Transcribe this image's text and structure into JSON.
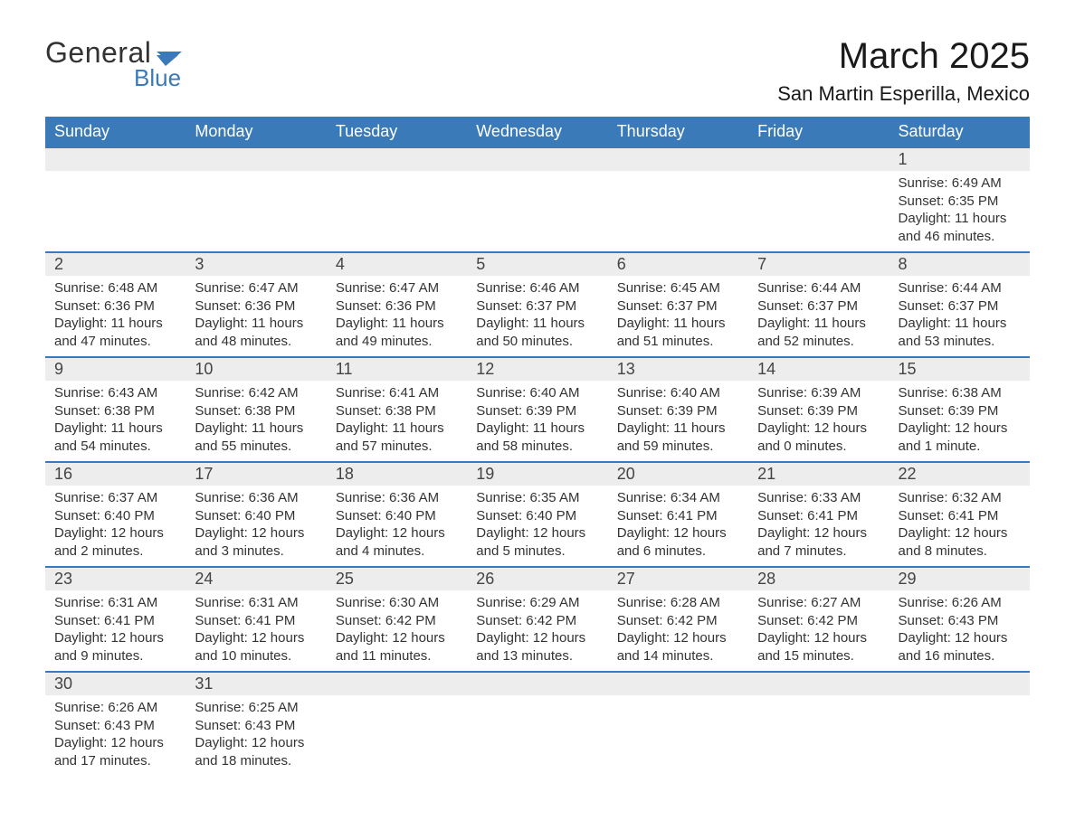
{
  "brand": {
    "general": "General",
    "blue": "Blue",
    "flag_color": "#3b7ab8"
  },
  "title": "March 2025",
  "location": "San Martin Esperilla, Mexico",
  "colors": {
    "header_bg": "#3b7ab8",
    "header_text": "#ffffff",
    "daynum_bg": "#ededed",
    "border": "#3b7ab8",
    "text": "#333333",
    "body_bg": "#ffffff"
  },
  "weekdays": [
    "Sunday",
    "Monday",
    "Tuesday",
    "Wednesday",
    "Thursday",
    "Friday",
    "Saturday"
  ],
  "weeks": [
    [
      null,
      null,
      null,
      null,
      null,
      null,
      {
        "n": "1",
        "sr": "Sunrise: 6:49 AM",
        "ss": "Sunset: 6:35 PM",
        "d1": "Daylight: 11 hours",
        "d2": "and 46 minutes."
      }
    ],
    [
      {
        "n": "2",
        "sr": "Sunrise: 6:48 AM",
        "ss": "Sunset: 6:36 PM",
        "d1": "Daylight: 11 hours",
        "d2": "and 47 minutes."
      },
      {
        "n": "3",
        "sr": "Sunrise: 6:47 AM",
        "ss": "Sunset: 6:36 PM",
        "d1": "Daylight: 11 hours",
        "d2": "and 48 minutes."
      },
      {
        "n": "4",
        "sr": "Sunrise: 6:47 AM",
        "ss": "Sunset: 6:36 PM",
        "d1": "Daylight: 11 hours",
        "d2": "and 49 minutes."
      },
      {
        "n": "5",
        "sr": "Sunrise: 6:46 AM",
        "ss": "Sunset: 6:37 PM",
        "d1": "Daylight: 11 hours",
        "d2": "and 50 minutes."
      },
      {
        "n": "6",
        "sr": "Sunrise: 6:45 AM",
        "ss": "Sunset: 6:37 PM",
        "d1": "Daylight: 11 hours",
        "d2": "and 51 minutes."
      },
      {
        "n": "7",
        "sr": "Sunrise: 6:44 AM",
        "ss": "Sunset: 6:37 PM",
        "d1": "Daylight: 11 hours",
        "d2": "and 52 minutes."
      },
      {
        "n": "8",
        "sr": "Sunrise: 6:44 AM",
        "ss": "Sunset: 6:37 PM",
        "d1": "Daylight: 11 hours",
        "d2": "and 53 minutes."
      }
    ],
    [
      {
        "n": "9",
        "sr": "Sunrise: 6:43 AM",
        "ss": "Sunset: 6:38 PM",
        "d1": "Daylight: 11 hours",
        "d2": "and 54 minutes."
      },
      {
        "n": "10",
        "sr": "Sunrise: 6:42 AM",
        "ss": "Sunset: 6:38 PM",
        "d1": "Daylight: 11 hours",
        "d2": "and 55 minutes."
      },
      {
        "n": "11",
        "sr": "Sunrise: 6:41 AM",
        "ss": "Sunset: 6:38 PM",
        "d1": "Daylight: 11 hours",
        "d2": "and 57 minutes."
      },
      {
        "n": "12",
        "sr": "Sunrise: 6:40 AM",
        "ss": "Sunset: 6:39 PM",
        "d1": "Daylight: 11 hours",
        "d2": "and 58 minutes."
      },
      {
        "n": "13",
        "sr": "Sunrise: 6:40 AM",
        "ss": "Sunset: 6:39 PM",
        "d1": "Daylight: 11 hours",
        "d2": "and 59 minutes."
      },
      {
        "n": "14",
        "sr": "Sunrise: 6:39 AM",
        "ss": "Sunset: 6:39 PM",
        "d1": "Daylight: 12 hours",
        "d2": "and 0 minutes."
      },
      {
        "n": "15",
        "sr": "Sunrise: 6:38 AM",
        "ss": "Sunset: 6:39 PM",
        "d1": "Daylight: 12 hours",
        "d2": "and 1 minute."
      }
    ],
    [
      {
        "n": "16",
        "sr": "Sunrise: 6:37 AM",
        "ss": "Sunset: 6:40 PM",
        "d1": "Daylight: 12 hours",
        "d2": "and 2 minutes."
      },
      {
        "n": "17",
        "sr": "Sunrise: 6:36 AM",
        "ss": "Sunset: 6:40 PM",
        "d1": "Daylight: 12 hours",
        "d2": "and 3 minutes."
      },
      {
        "n": "18",
        "sr": "Sunrise: 6:36 AM",
        "ss": "Sunset: 6:40 PM",
        "d1": "Daylight: 12 hours",
        "d2": "and 4 minutes."
      },
      {
        "n": "19",
        "sr": "Sunrise: 6:35 AM",
        "ss": "Sunset: 6:40 PM",
        "d1": "Daylight: 12 hours",
        "d2": "and 5 minutes."
      },
      {
        "n": "20",
        "sr": "Sunrise: 6:34 AM",
        "ss": "Sunset: 6:41 PM",
        "d1": "Daylight: 12 hours",
        "d2": "and 6 minutes."
      },
      {
        "n": "21",
        "sr": "Sunrise: 6:33 AM",
        "ss": "Sunset: 6:41 PM",
        "d1": "Daylight: 12 hours",
        "d2": "and 7 minutes."
      },
      {
        "n": "22",
        "sr": "Sunrise: 6:32 AM",
        "ss": "Sunset: 6:41 PM",
        "d1": "Daylight: 12 hours",
        "d2": "and 8 minutes."
      }
    ],
    [
      {
        "n": "23",
        "sr": "Sunrise: 6:31 AM",
        "ss": "Sunset: 6:41 PM",
        "d1": "Daylight: 12 hours",
        "d2": "and 9 minutes."
      },
      {
        "n": "24",
        "sr": "Sunrise: 6:31 AM",
        "ss": "Sunset: 6:41 PM",
        "d1": "Daylight: 12 hours",
        "d2": "and 10 minutes."
      },
      {
        "n": "25",
        "sr": "Sunrise: 6:30 AM",
        "ss": "Sunset: 6:42 PM",
        "d1": "Daylight: 12 hours",
        "d2": "and 11 minutes."
      },
      {
        "n": "26",
        "sr": "Sunrise: 6:29 AM",
        "ss": "Sunset: 6:42 PM",
        "d1": "Daylight: 12 hours",
        "d2": "and 13 minutes."
      },
      {
        "n": "27",
        "sr": "Sunrise: 6:28 AM",
        "ss": "Sunset: 6:42 PM",
        "d1": "Daylight: 12 hours",
        "d2": "and 14 minutes."
      },
      {
        "n": "28",
        "sr": "Sunrise: 6:27 AM",
        "ss": "Sunset: 6:42 PM",
        "d1": "Daylight: 12 hours",
        "d2": "and 15 minutes."
      },
      {
        "n": "29",
        "sr": "Sunrise: 6:26 AM",
        "ss": "Sunset: 6:43 PM",
        "d1": "Daylight: 12 hours",
        "d2": "and 16 minutes."
      }
    ],
    [
      {
        "n": "30",
        "sr": "Sunrise: 6:26 AM",
        "ss": "Sunset: 6:43 PM",
        "d1": "Daylight: 12 hours",
        "d2": "and 17 minutes."
      },
      {
        "n": "31",
        "sr": "Sunrise: 6:25 AM",
        "ss": "Sunset: 6:43 PM",
        "d1": "Daylight: 12 hours",
        "d2": "and 18 minutes."
      },
      null,
      null,
      null,
      null,
      null
    ]
  ]
}
